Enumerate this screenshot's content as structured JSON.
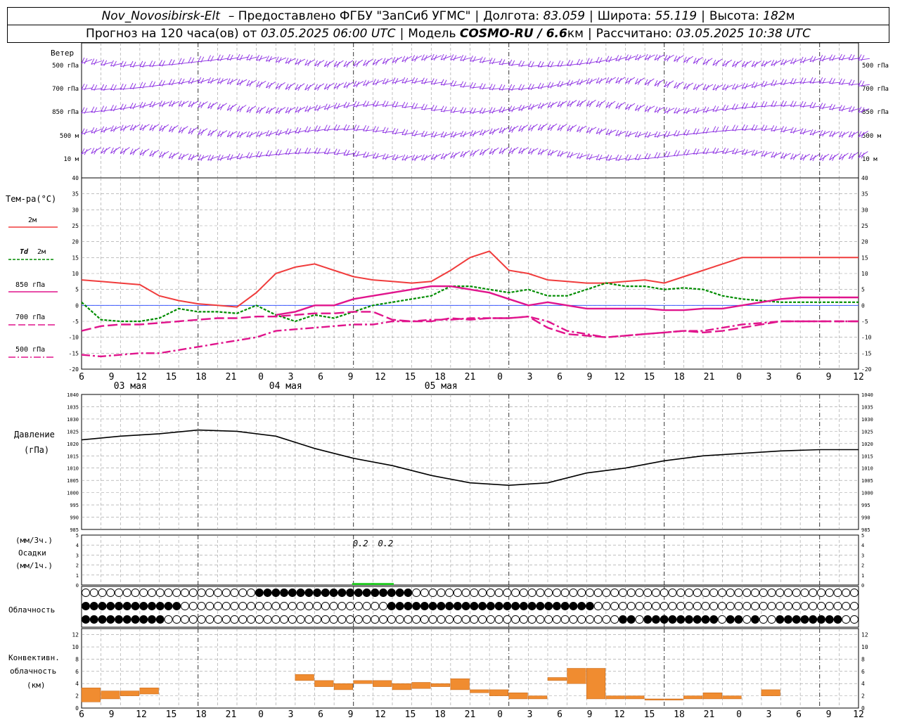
{
  "header": {
    "station": "Nov_Novosibirsk-Elt",
    "provider": "– Предоставлено ФГБУ \"ЗапСиб УГМС\"",
    "lon_label": "Долгота:",
    "lon_value": "83.059",
    "lat_label": "Широта:",
    "lat_value": "55.119",
    "alt_label": "Высота:",
    "alt_value": "182",
    "alt_unit": "м",
    "forecast_prefix": "Прогноз на 120 часа(ов)  от",
    "forecast_time": "03.05.2025 06:00 UTC",
    "model_label": "Модель",
    "model_name": "COSMO-RU / 6.6",
    "model_unit": "км",
    "calc_label": "Рассчитано:",
    "calc_time": "03.05.2025 10:38 UTC"
  },
  "labels": {
    "wind_title": "Ветер",
    "wind_levels": [
      "500 гПа",
      "700 гПа",
      "850 гПа",
      "500 м",
      "10  м"
    ],
    "temp_title": "Тем-ра(°C)",
    "leg_t2m": "2м",
    "leg_td_sym": "Td",
    "leg_td": "2м",
    "leg_850": "850 гПа",
    "leg_700": "700 гПа",
    "leg_500": "500 гПа",
    "pres_title1": "Давление",
    "pres_title2": "(гПа)",
    "precip_t1": "(мм/3ч.)",
    "precip_t2": "Осадки",
    "precip_t3": "(мм/1ч.)",
    "cloud_title": "Облачность",
    "conv_t1": "Конвективн.",
    "conv_t2": "облачность",
    "conv_t3": "(км)"
  },
  "chart_data": [
    {
      "type": "line",
      "name": "temperature",
      "x_hours_since_start": [
        0,
        3,
        6,
        9,
        12,
        15,
        18,
        21,
        24,
        27,
        30,
        33,
        36,
        39,
        42,
        45,
        48,
        51,
        54,
        57,
        60,
        63,
        66,
        69,
        72,
        75,
        78,
        81,
        84,
        87,
        90,
        93,
        96,
        99,
        102,
        105,
        108,
        111,
        114,
        117,
        120
      ],
      "x_tick_labels": [
        "6",
        "9",
        "12",
        "15",
        "18",
        "21",
        "0",
        "3",
        "6",
        "9",
        "12",
        "15",
        "18",
        "21",
        "0",
        "3",
        "6",
        "9",
        "12",
        "15",
        "18",
        "21",
        "0",
        "3",
        "6",
        "9",
        "12"
      ],
      "date_labels": [
        "03 мая",
        "04 мая",
        "05 мая"
      ],
      "ylim": [
        -20,
        40
      ],
      "yticks": [
        -20,
        -15,
        -10,
        -5,
        0,
        5,
        10,
        15,
        20,
        25,
        30,
        35,
        40
      ],
      "series": [
        {
          "name": "T 2м",
          "color": "#f03c3c",
          "values": [
            8,
            7.5,
            7,
            6.5,
            3,
            1.5,
            0.5,
            0,
            -0.5,
            4,
            10,
            12,
            13,
            11,
            9,
            8,
            7.5,
            7,
            7.5,
            11,
            15,
            17,
            11,
            10,
            8,
            7.5,
            7,
            7,
            7.5,
            8,
            7,
            9,
            11,
            13,
            15,
            15,
            15,
            15,
            15,
            15,
            15
          ]
        },
        {
          "name": "Td 2м",
          "color": "#008c00",
          "values": [
            1,
            -4.5,
            -5,
            -5,
            -4,
            -1,
            -2,
            -2,
            -2.5,
            0,
            -3,
            -5,
            -3,
            -4,
            -2,
            0,
            1,
            2,
            3,
            6,
            6,
            5,
            4,
            5,
            3,
            3,
            5,
            7,
            6,
            6,
            5,
            5.5,
            5,
            3,
            2,
            1.5,
            1,
            1,
            1,
            1,
            1
          ]
        },
        {
          "name": "850 гПа",
          "color": "#e0148c",
          "values": [
            null,
            null,
            null,
            null,
            null,
            null,
            null,
            null,
            null,
            null,
            -3,
            -2,
            0,
            0,
            2,
            3,
            4,
            5,
            6,
            6,
            5,
            4,
            2,
            0,
            1,
            0,
            -1,
            -1,
            -1,
            -1,
            -1.5,
            -1.5,
            -1,
            -1,
            0,
            1,
            2,
            2.5,
            2.5,
            2.5,
            2.5
          ]
        },
        {
          "name": "700 гПа",
          "color": "#e0148c",
          "values": [
            -8,
            -6.5,
            -6,
            -6,
            -5.5,
            -5,
            -4.5,
            -4,
            -4,
            -3.5,
            -3.5,
            -3,
            -2.5,
            -2.5,
            -2,
            -2,
            -4.5,
            -5,
            -5,
            -4,
            -4.5,
            -4,
            -4,
            -3.5,
            -7,
            -9,
            -9.5,
            -10,
            -9.5,
            -9,
            -8.5,
            -8,
            -8.5,
            -8,
            -7,
            -6,
            -5,
            -5,
            -5,
            -5,
            -5
          ]
        },
        {
          "name": "500 гПа",
          "color": "#e0148c",
          "values": [
            -15.5,
            -16,
            -15.5,
            -15,
            -15,
            -14,
            -13,
            -12,
            -11,
            -10,
            -8,
            -7.5,
            -7,
            -6.5,
            -6,
            -6,
            -5,
            -5,
            -4.5,
            -4.5,
            -4,
            -4,
            -4,
            -3.5,
            -5,
            -8,
            -9,
            -10,
            -9.5,
            -9,
            -8.5,
            -8,
            -8,
            -7,
            -6,
            -5.5,
            -5,
            -5,
            -5,
            -5,
            -5
          ]
        }
      ]
    },
    {
      "type": "line",
      "name": "pressure",
      "ylim": [
        985,
        1040
      ],
      "yticks": [
        985,
        990,
        995,
        1000,
        1005,
        1010,
        1015,
        1020,
        1025,
        1030,
        1035,
        1040
      ],
      "series": [
        {
          "name": "Давление",
          "color": "#000000",
          "x_hours_since_start": [
            0,
            6,
            12,
            18,
            24,
            30,
            36,
            42,
            48,
            54,
            60,
            66,
            72,
            78,
            84,
            90,
            96,
            102,
            108,
            114,
            120
          ],
          "values": [
            1021.5,
            1023,
            1024,
            1025.5,
            1025,
            1023,
            1018,
            1014,
            1011,
            1007,
            1004,
            1003,
            1004,
            1008,
            1010,
            1013,
            1015,
            1016,
            1017,
            1017.5,
            1017.5
          ]
        }
      ]
    },
    {
      "type": "bar",
      "name": "precipitation",
      "ylim": [
        0,
        5
      ],
      "yticks": [
        0,
        1,
        2,
        3,
        4,
        5
      ],
      "annotations": [
        "0.2",
        "0.2"
      ],
      "values_mm": [
        {
          "x_hours": 42,
          "value": 0.2
        },
        {
          "x_hours": 45,
          "value": 0.2
        }
      ]
    },
    {
      "type": "bar",
      "name": "convective_cloud",
      "ylim": [
        0,
        13
      ],
      "yticks": [
        0,
        2,
        4,
        6,
        8,
        10,
        12
      ],
      "bars": [
        {
          "x": 0,
          "low": 1,
          "high": 3.3
        },
        {
          "x": 3,
          "low": 1.5,
          "high": 2.8
        },
        {
          "x": 6,
          "low": 2,
          "high": 2.8
        },
        {
          "x": 9,
          "low": 2.3,
          "high": 3.3
        },
        {
          "x": 33,
          "low": 4.5,
          "high": 5.5
        },
        {
          "x": 36,
          "low": 3.5,
          "high": 4.5
        },
        {
          "x": 39,
          "low": 3,
          "high": 4
        },
        {
          "x": 42,
          "low": 4,
          "high": 4.5
        },
        {
          "x": 45,
          "low": 3.5,
          "high": 4.5
        },
        {
          "x": 48,
          "low": 3,
          "high": 4
        },
        {
          "x": 51,
          "low": 3.2,
          "high": 4.2
        },
        {
          "x": 54,
          "low": 3.5,
          "high": 4
        },
        {
          "x": 57,
          "low": 3,
          "high": 4.8
        },
        {
          "x": 60,
          "low": 2.5,
          "high": 3
        },
        {
          "x": 63,
          "low": 2,
          "high": 3
        },
        {
          "x": 66,
          "low": 1.5,
          "high": 2.5
        },
        {
          "x": 69,
          "low": 1.5,
          "high": 2
        },
        {
          "x": 72,
          "low": 4.5,
          "high": 5
        },
        {
          "x": 75,
          "low": 4,
          "high": 6.5
        },
        {
          "x": 78,
          "low": 1.5,
          "high": 6.5
        },
        {
          "x": 81,
          "low": 1.5,
          "high": 2
        },
        {
          "x": 84,
          "low": 1.5,
          "high": 2
        },
        {
          "x": 87,
          "low": 1.3,
          "high": 1.5
        },
        {
          "x": 90,
          "low": 1.3,
          "high": 1.5
        },
        {
          "x": 93,
          "low": 1.5,
          "high": 2
        },
        {
          "x": 96,
          "low": 1.5,
          "high": 2.5
        },
        {
          "x": 99,
          "low": 1.5,
          "high": 2
        },
        {
          "x": 105,
          "low": 2,
          "high": 3
        }
      ]
    }
  ]
}
